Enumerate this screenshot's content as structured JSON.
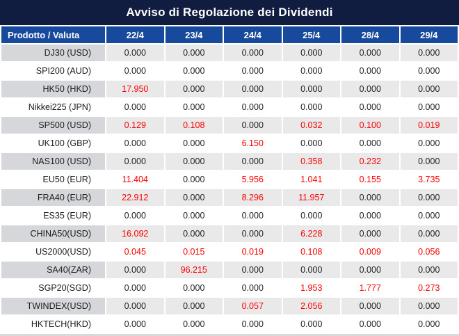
{
  "title": "Avviso di Regolazione dei Dividendi",
  "table": {
    "product_column_header": "Prodotto / Valuta",
    "date_headers": [
      "22/4",
      "23/4",
      "24/4",
      "25/4",
      "28/4",
      "29/4"
    ],
    "rows": [
      {
        "product": "DJ30 (USD)",
        "values": [
          "0.000",
          "0.000",
          "0.000",
          "0.000",
          "0.000",
          "0.000"
        ]
      },
      {
        "product": "SPI200 (AUD)",
        "values": [
          "0.000",
          "0.000",
          "0.000",
          "0.000",
          "0.000",
          "0.000"
        ]
      },
      {
        "product": "HK50 (HKD)",
        "values": [
          "17.950",
          "0.000",
          "0.000",
          "0.000",
          "0.000",
          "0.000"
        ]
      },
      {
        "product": "Nikkei225 (JPN)",
        "values": [
          "0.000",
          "0.000",
          "0.000",
          "0.000",
          "0.000",
          "0.000"
        ]
      },
      {
        "product": "SP500 (USD)",
        "values": [
          "0.129",
          "0.108",
          "0.000",
          "0.032",
          "0.100",
          "0.019"
        ]
      },
      {
        "product": "UK100 (GBP)",
        "values": [
          "0.000",
          "0.000",
          "6.150",
          "0.000",
          "0.000",
          "0.000"
        ]
      },
      {
        "product": "NAS100 (USD)",
        "values": [
          "0.000",
          "0.000",
          "0.000",
          "0.358",
          "0.232",
          "0.000"
        ]
      },
      {
        "product": "EU50 (EUR)",
        "values": [
          "11.404",
          "0.000",
          "5.956",
          "1.041",
          "0.155",
          "3.735"
        ]
      },
      {
        "product": "FRA40 (EUR)",
        "values": [
          "22.912",
          "0.000",
          "8.296",
          "11.957",
          "0.000",
          "0.000"
        ]
      },
      {
        "product": "ES35 (EUR)",
        "values": [
          "0.000",
          "0.000",
          "0.000",
          "0.000",
          "0.000",
          "0.000"
        ]
      },
      {
        "product": "CHINA50(USD)",
        "values": [
          "16.092",
          "0.000",
          "0.000",
          "6.228",
          "0.000",
          "0.000"
        ]
      },
      {
        "product": "US2000(USD)",
        "values": [
          "0.045",
          "0.015",
          "0.019",
          "0.108",
          "0.009",
          "0.056"
        ]
      },
      {
        "product": "SA40(ZAR)",
        "values": [
          "0.000",
          "96.215",
          "0.000",
          "0.000",
          "0.000",
          "0.000"
        ]
      },
      {
        "product": "SGP20(SGD)",
        "values": [
          "0.000",
          "0.000",
          "0.000",
          "1.953",
          "1.777",
          "0.273"
        ]
      },
      {
        "product": "TWINDEX(USD)",
        "values": [
          "0.000",
          "0.000",
          "0.057",
          "2.056",
          "0.000",
          "0.000"
        ]
      },
      {
        "product": "HKTECH(HKD)",
        "values": [
          "0.000",
          "0.000",
          "0.000",
          "0.000",
          "0.000",
          "0.000"
        ]
      }
    ]
  },
  "colors": {
    "title_bar_bg": "#101c40",
    "header_bg": "#17499d",
    "alt_row_label_bg": "#d5d7da",
    "alt_row_value_bg": "#e9e9e9",
    "zero_value_color": "#1f1f1f",
    "nonzero_value_color": "#ff0000",
    "bottom_strip_bg": "#d9d9d9"
  }
}
